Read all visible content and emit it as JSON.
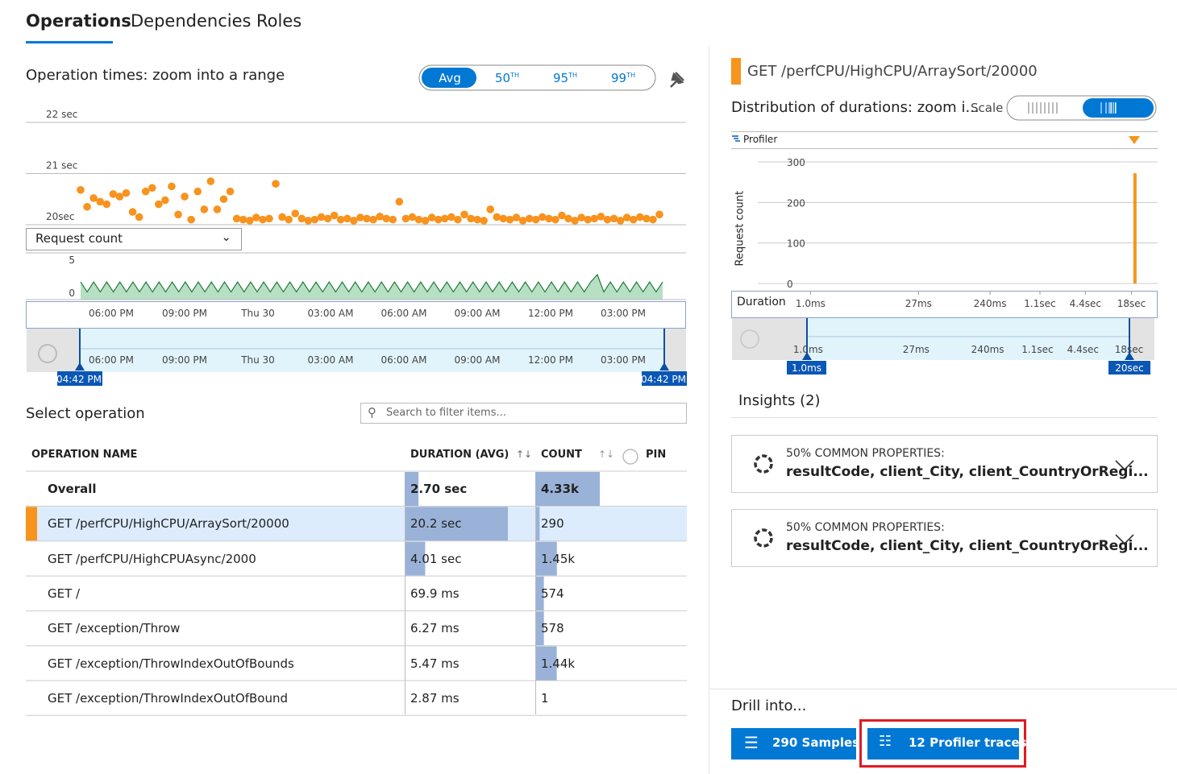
{
  "tabs": [
    "Operations",
    "Dependencies",
    "Roles"
  ],
  "left": {
    "title": "Operation times: zoom into a range",
    "percentiles": [
      {
        "label": "Avg",
        "sup": null
      },
      {
        "label": "50",
        "sup": "TH"
      },
      {
        "label": "95",
        "sup": "TH"
      },
      {
        "label": "99",
        "sup": "TH"
      }
    ],
    "yticks": [
      {
        "value": 22,
        "label": "22 sec"
      },
      {
        "value": 21,
        "label": "21 sec"
      },
      {
        "value": 20,
        "label": "20sec"
      }
    ],
    "ylim": [
      20,
      22
    ],
    "scatter": [
      20.68,
      20.35,
      20.52,
      20.45,
      20.4,
      20.6,
      20.55,
      20.62,
      20.25,
      20.15,
      20.65,
      20.72,
      20.4,
      20.48,
      20.75,
      20.2,
      20.55,
      20.1,
      20.65,
      20.3,
      20.85,
      20.3,
      20.5,
      20.65,
      20.12,
      20.1,
      20.08,
      20.14,
      20.1,
      20.12,
      20.8,
      20.15,
      20.1,
      20.22,
      20.12,
      20.08,
      20.1,
      20.15,
      20.12,
      20.18,
      20.1,
      20.12,
      20.08,
      20.14,
      20.12,
      20.1,
      20.16,
      20.12,
      20.1,
      20.45,
      20.12,
      20.15,
      20.1,
      20.08,
      20.14,
      20.1,
      20.12,
      20.15,
      20.1,
      20.2,
      20.12,
      20.1,
      20.08,
      20.3,
      20.15,
      20.12,
      20.1,
      20.14,
      20.08,
      20.12,
      20.1,
      20.15,
      20.12,
      20.1,
      20.18,
      20.12,
      20.08,
      20.14,
      20.1,
      20.12,
      20.16,
      20.1,
      20.12,
      20.08,
      20.14,
      20.1,
      20.15,
      20.12,
      20.1,
      20.2
    ],
    "metric": "Request count",
    "count_yticks": [
      5,
      0
    ],
    "count_ylim": [
      0,
      5
    ],
    "counts": [
      1.7,
      0.2,
      1.7,
      0.2,
      1.7,
      0.2,
      1.7,
      0.2,
      1.7,
      0.2,
      1.7,
      0.2,
      1.7,
      0.2,
      1.7,
      0.2,
      1.7,
      0.2,
      1.7,
      0.2,
      1.7,
      0.2,
      1.7,
      0.2,
      1.7,
      0.2,
      1.7,
      0.2,
      1.7,
      0.2,
      1.7,
      0.2,
      1.7,
      0.2,
      1.7,
      0.2,
      1.7,
      0.2,
      1.7,
      0.2,
      1.7,
      0.2,
      1.7,
      0.2,
      1.7,
      0.2,
      1.7,
      0.2,
      1.7,
      0.2,
      1.7,
      0.2,
      1.7,
      0.2,
      1.7,
      0.2,
      1.7,
      0.2,
      1.7,
      0.2,
      1.7,
      0.2,
      1.7,
      0.2,
      1.7,
      0.2,
      1.7,
      0.2,
      1.7,
      0.2,
      1.7,
      0.2,
      1.7,
      0.2,
      1.7,
      0.2,
      1.7,
      0.2,
      1.7,
      2.8,
      0.2,
      1.7,
      0.2,
      1.7,
      0.2,
      1.7,
      0.2,
      1.7,
      0.2,
      1.7
    ],
    "time_labels": [
      "06:00 PM",
      "09:00 PM",
      "Thu 30",
      "03:00 AM",
      "06:00 AM",
      "09:00 AM",
      "12:00 PM",
      "03:00 PM"
    ],
    "range_start": "04:42 PM",
    "range_end": "04:42 PM",
    "select_title": "Select operation",
    "search": "Search to filter items...",
    "headers": [
      "OPERATION NAME",
      "DURATION (AVG)",
      "COUNT",
      "PIN"
    ],
    "rows": [
      {
        "name": "Overall",
        "duration": "2.70 sec",
        "count": "4.33k",
        "duration_value": 2.7,
        "count_value": 4330
      },
      {
        "name": "GET /perfCPU/HighCPU/ArraySort/20000",
        "duration": "20.2 sec",
        "count": "290",
        "duration_value": 20.2,
        "count_value": 290
      },
      {
        "name": "GET /perfCPU/HighCPUAsync/2000",
        "duration": "4.01 sec",
        "count": "1.45k",
        "duration_value": 4.01,
        "count_value": 1450
      },
      {
        "name": "GET /",
        "duration": "69.9 ms",
        "count": "574",
        "duration_value": 0.0699,
        "count_value": 574
      },
      {
        "name": "GET /exception/Throw",
        "duration": "6.27 ms",
        "count": "578",
        "duration_value": 0.00627,
        "count_value": 578
      },
      {
        "name": "GET /exception/ThrowIndexOutOfBounds",
        "duration": "5.47 ms",
        "count": "1.44k",
        "duration_value": 0.00547,
        "count_value": 1440
      },
      {
        "name": "GET /exception/ThrowIndexOutOfBound",
        "duration": "2.87 ms",
        "count": "1",
        "duration_value": 0.00287,
        "count_value": 1
      }
    ]
  },
  "right": {
    "operation": "GET /perfCPU/HighCPU/ArraySort/20000",
    "title": "Distribution of durations: zoom i...",
    "scale": "Scale",
    "profiler": "Profiler",
    "ylabel": "Request count",
    "xlabel": "Duration",
    "yticks": [
      300,
      200,
      100,
      0
    ],
    "ylim": [
      0,
      300
    ],
    "xticks": [
      {
        "value": 1,
        "label": "1.0ms"
      },
      {
        "value": 27,
        "label": "27ms"
      },
      {
        "value": 240,
        "label": "240ms"
      },
      {
        "value": 1100,
        "label": "1.1sec"
      },
      {
        "value": 4400,
        "label": "4.4sec"
      },
      {
        "value": 18000,
        "label": "18sec"
      }
    ],
    "xlim": [
      0.2,
      40000
    ],
    "xscale": "log",
    "x": [
      20000
    ],
    "values": [
      272
    ],
    "color": "#f7941d",
    "range_start": "1.0ms",
    "range_end": "20sec",
    "insights_title": "Insights (2)",
    "insights": [
      {
        "heading": "50% COMMON PROPERTIES:",
        "text": "resultCode, client_City, client_CountryOrRegi..."
      },
      {
        "heading": "50% COMMON PROPERTIES:",
        "text": "resultCode, client_City, client_CountryOrRegi..."
      }
    ],
    "drill_title": "Drill into...",
    "buttons": [
      "290 Samples",
      "12 Profiler traces"
    ]
  }
}
